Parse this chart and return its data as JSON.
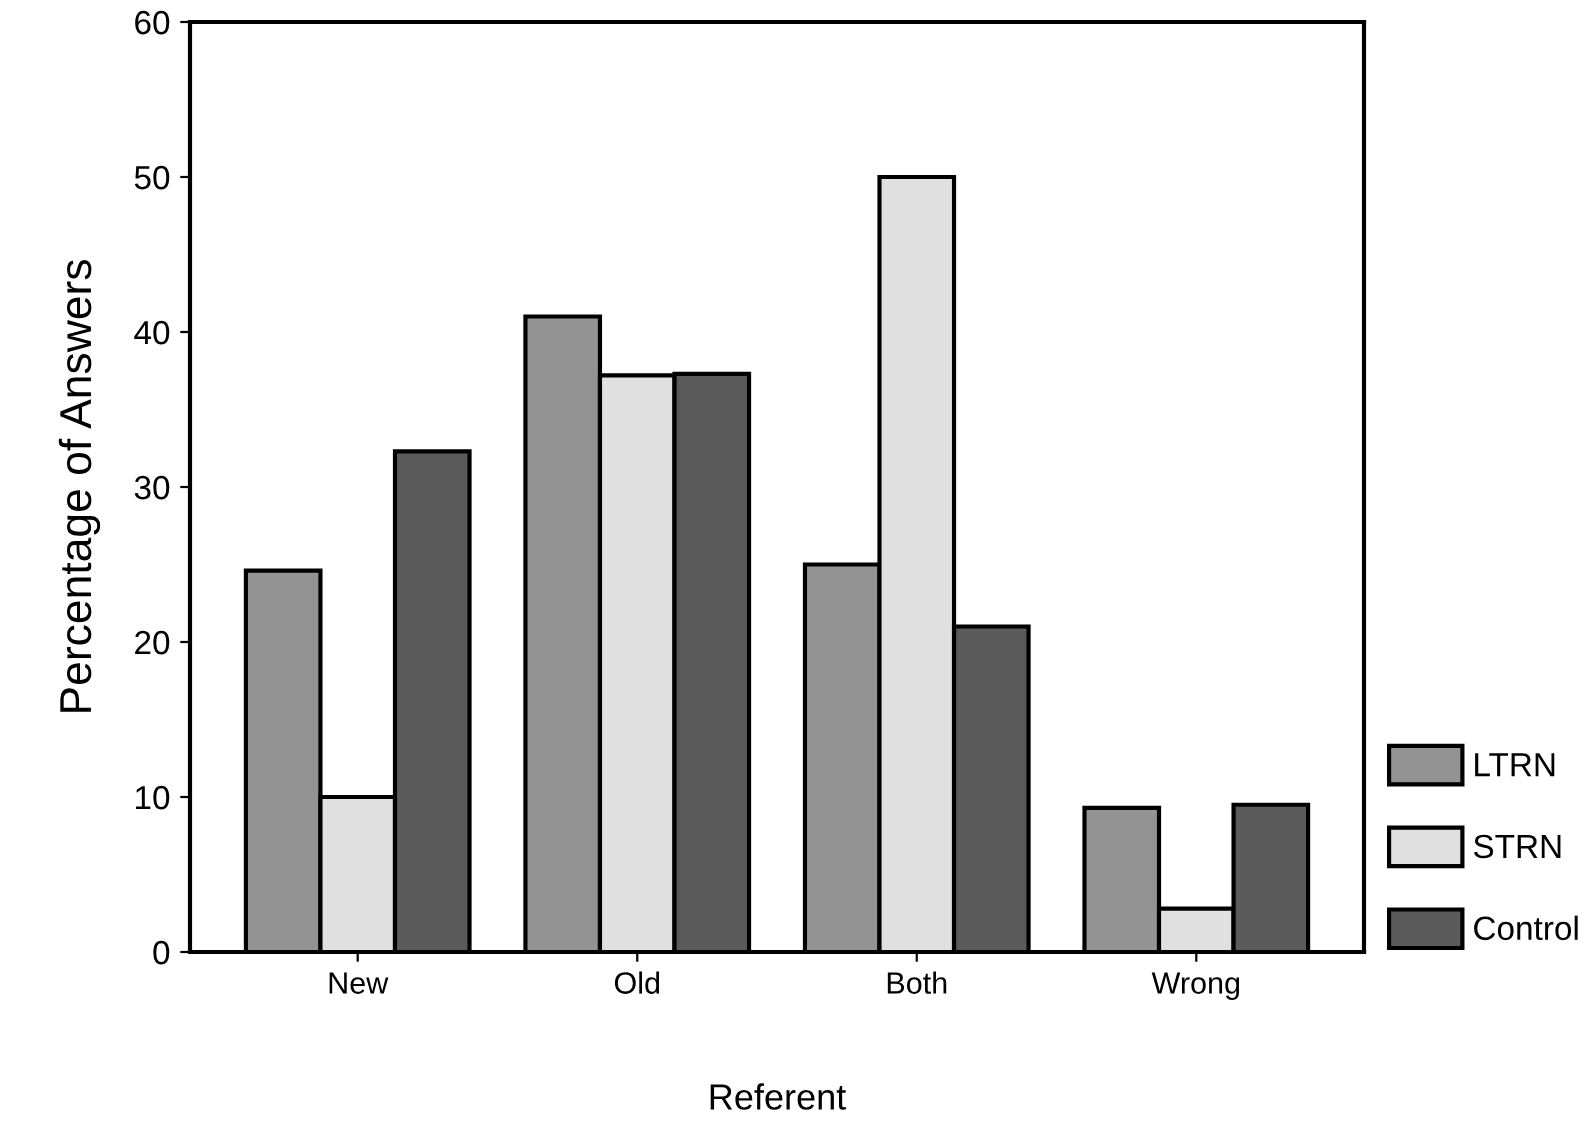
{
  "chart_data": {
    "type": "bar",
    "xlabel": "Referent",
    "ylabel": "Percentage of Answers",
    "categories": [
      "New",
      "Old",
      "Both",
      "Wrong"
    ],
    "series": [
      {
        "name": "LTRN",
        "color": "#939393",
        "values": [
          24.6,
          41,
          25,
          9.3
        ]
      },
      {
        "name": "STRN",
        "color": "#e0e0e0",
        "values": [
          10,
          37.2,
          50,
          2.8
        ]
      },
      {
        "name": "Control",
        "color": "#5a5a5a",
        "values": [
          32.3,
          37.3,
          21,
          9.5
        ]
      }
    ],
    "ylim": [
      0,
      60
    ],
    "yticks": [
      0,
      10,
      20,
      30,
      40,
      50,
      60
    ],
    "grid": false,
    "legend": "right"
  }
}
